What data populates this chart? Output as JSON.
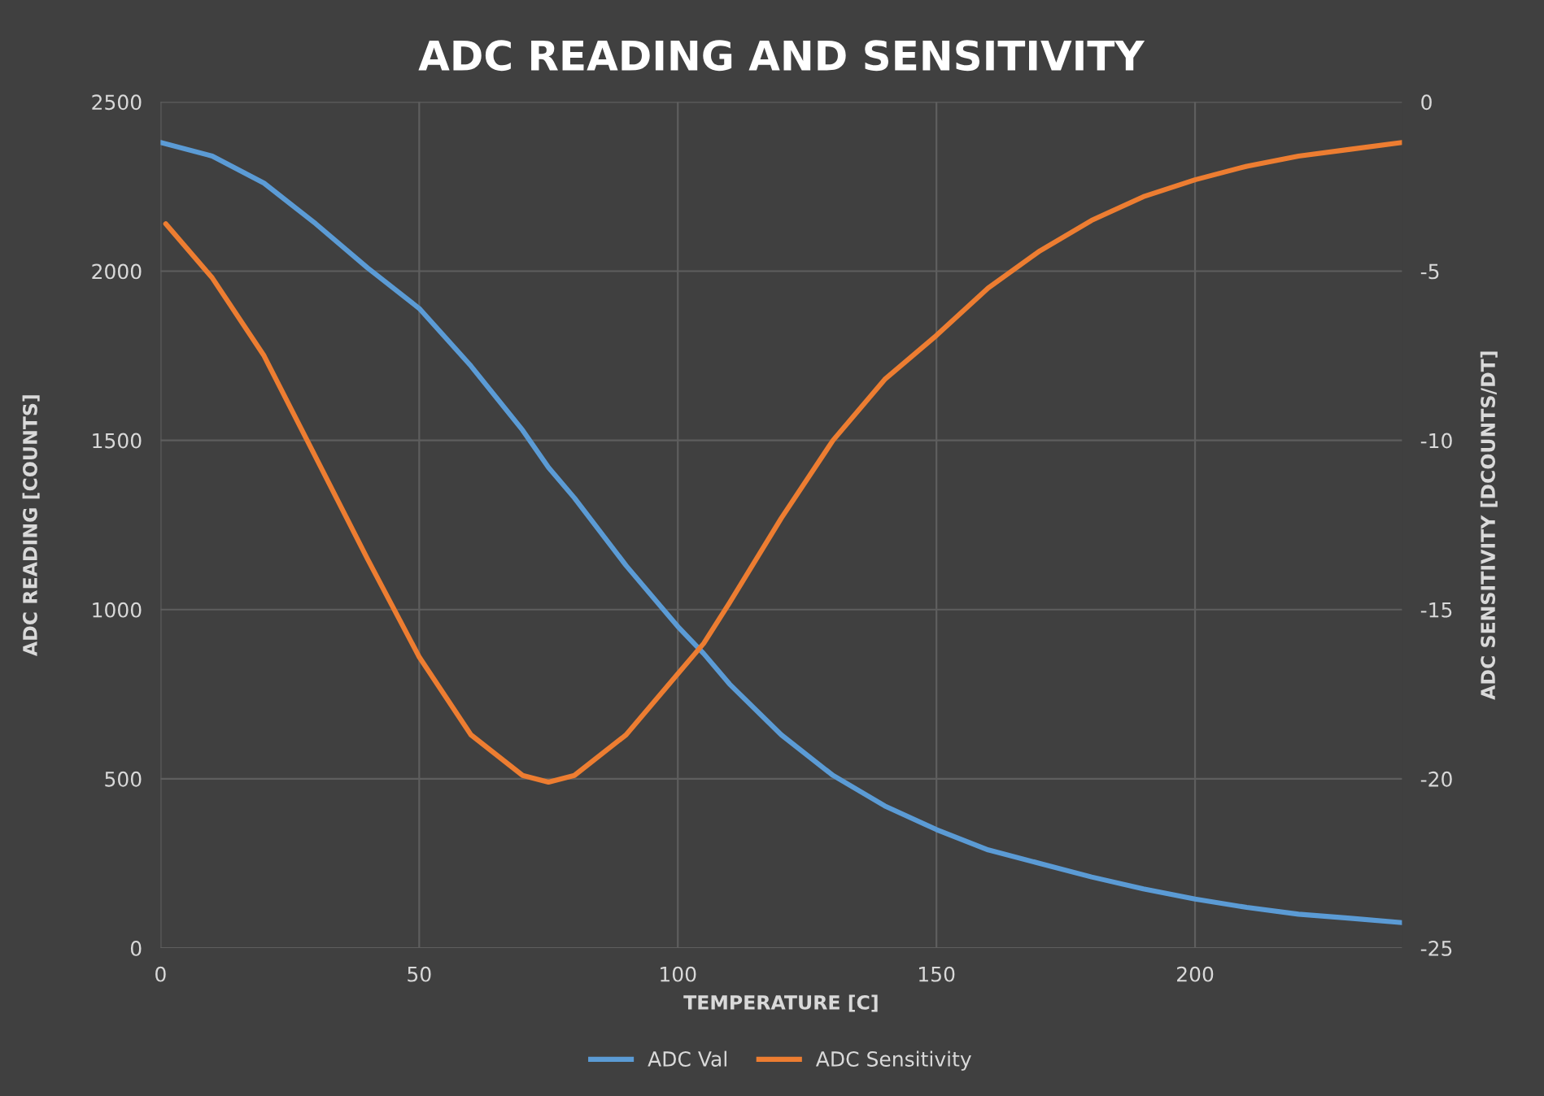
{
  "chart_data": {
    "type": "line",
    "title": "ADC READING AND SENSITIVITY",
    "xlabel": "TEMPERATURE [C]",
    "ylabel": "ADC READING [COUNTS]",
    "y2label": "ADC SENSITIVITY [DCOUNTS/DT]",
    "xlim": [
      0,
      240
    ],
    "xticks": [
      0,
      50,
      100,
      150,
      200
    ],
    "ylim": [
      0,
      2500
    ],
    "yticks": [
      0,
      500,
      1000,
      1500,
      2000,
      2500
    ],
    "y2lim": [
      -25,
      0
    ],
    "y2ticks": [
      -25,
      -20,
      -15,
      -10,
      -5,
      0
    ],
    "grid": true,
    "legend": "bottom",
    "marker": "none",
    "line_style": "solid",
    "series": [
      {
        "name": "ADC Val",
        "color": "#5b9bd5",
        "x": [
          0,
          10,
          20,
          30,
          40,
          50,
          60,
          70,
          75,
          80,
          90,
          100,
          105,
          110,
          120,
          130,
          140,
          150,
          160,
          170,
          180,
          190,
          200,
          210,
          220,
          230,
          240
        ],
        "values": [
          2380,
          2340,
          2260,
          2140,
          2010,
          1890,
          1720,
          1530,
          1420,
          1330,
          1130,
          950,
          870,
          780,
          630,
          510,
          420,
          350,
          290,
          250,
          210,
          175,
          145,
          120,
          100,
          88,
          75
        ]
      },
      {
        "name": "ADC Sensitivity",
        "color": "#ed7d31",
        "axis": "y2",
        "x": [
          1,
          10,
          20,
          30,
          40,
          50,
          60,
          70,
          75,
          80,
          90,
          100,
          105,
          110,
          120,
          130,
          140,
          150,
          160,
          170,
          180,
          190,
          200,
          210,
          220,
          230,
          240
        ],
        "values": [
          -3.6,
          -5.2,
          -7.5,
          -10.5,
          -13.5,
          -16.4,
          -18.7,
          -19.9,
          -20.1,
          -19.9,
          -18.7,
          -16.9,
          -16.0,
          -14.8,
          -12.3,
          -10.0,
          -8.2,
          -6.9,
          -5.5,
          -4.4,
          -3.5,
          -2.8,
          -2.3,
          -1.9,
          -1.6,
          -1.4,
          -1.2
        ]
      }
    ]
  }
}
